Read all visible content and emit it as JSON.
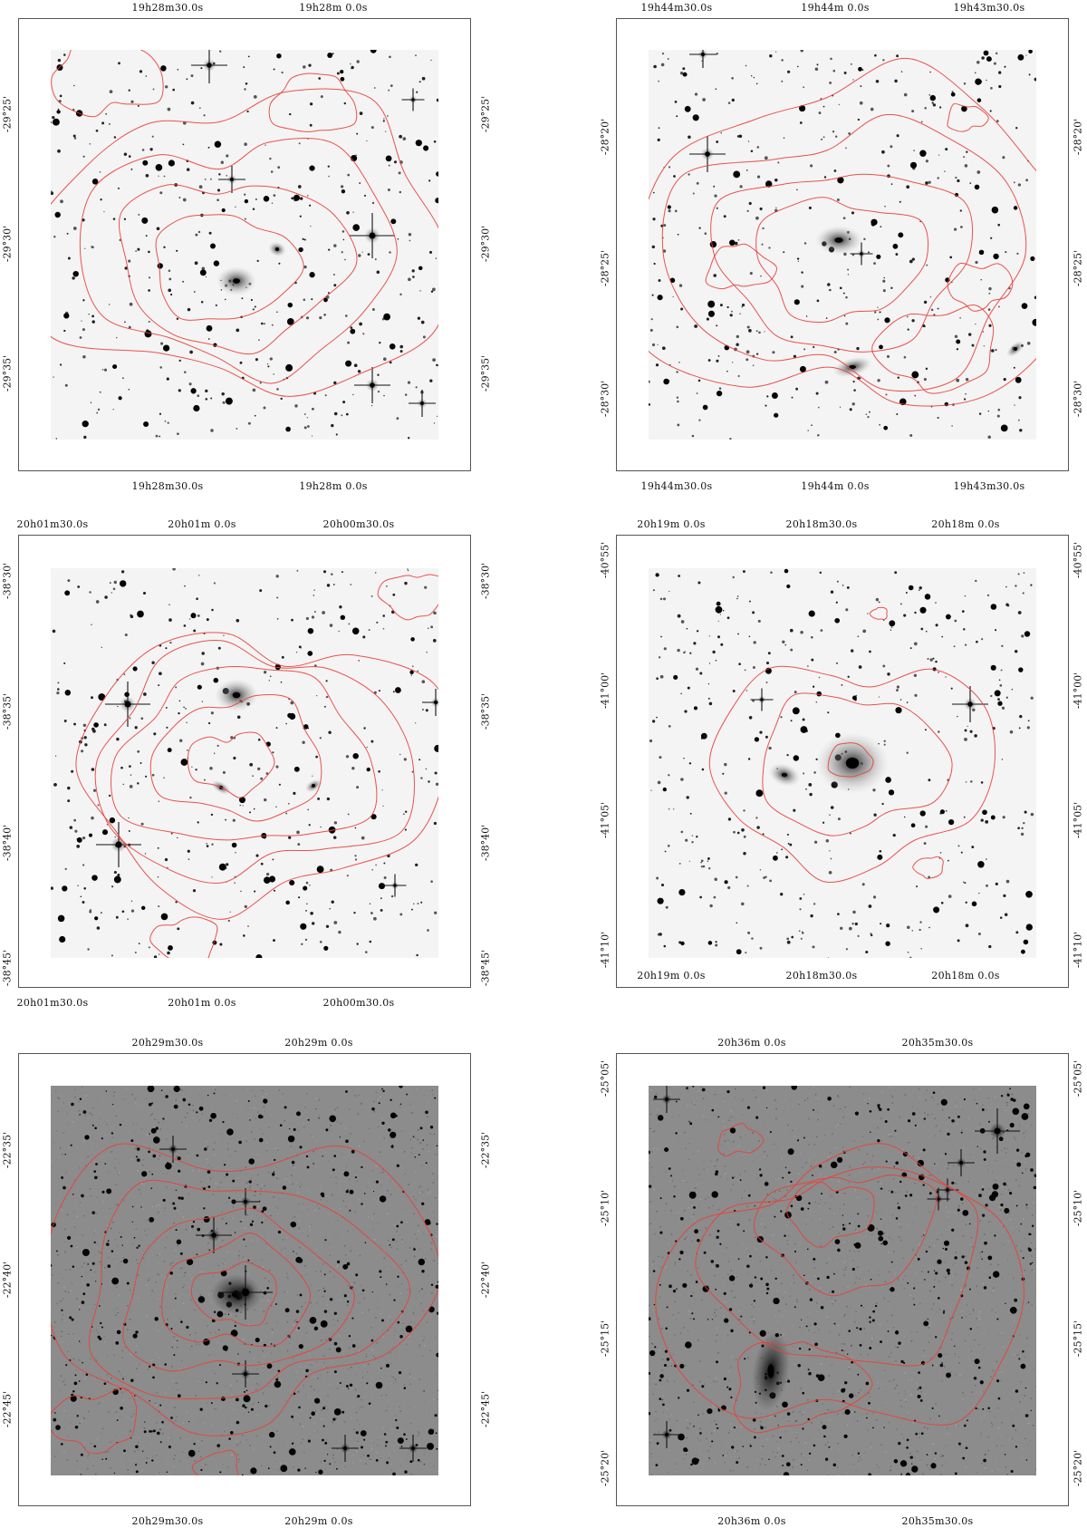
{
  "panels": [
    {
      "id": "p1",
      "theme": "light",
      "ra_top": [
        "19h28m30.0s",
        "19h28m 0.0s"
      ],
      "ra_bottom": [
        "19h28m30.0s",
        "19h28m 0.0s"
      ],
      "dec_labels": [
        "-29°25'",
        "-29°30'",
        "-29°35'"
      ]
    },
    {
      "id": "p2",
      "theme": "light",
      "ra_top": [
        "19h44m30.0s",
        "19h44m 0.0s",
        "19h43m30.0s"
      ],
      "ra_bottom": [
        "19h44m30.0s",
        "19h44m 0.0s",
        "19h43m30.0s"
      ],
      "dec_labels": [
        "-28°20'",
        "-28°25'",
        "-28°30'"
      ]
    },
    {
      "id": "p3",
      "theme": "light",
      "ra_top": [
        "20h01m30.0s",
        "20h01m 0.0s",
        "20h00m30.0s"
      ],
      "ra_bottom": [
        "20h01m30.0s",
        "20h01m 0.0s",
        "20h00m30.0s"
      ],
      "dec_labels": [
        "-38°30'",
        "-38°35'",
        "-38°40'",
        "-38°45'"
      ]
    },
    {
      "id": "p4",
      "theme": "light",
      "ra_top": [
        "20h19m 0.0s",
        "20h18m30.0s",
        "20h18m 0.0s"
      ],
      "ra_bottom": [
        "20h19m 0.0s",
        "20h18m30.0s",
        "20h18m 0.0s"
      ],
      "dec_labels": [
        "-40°55'",
        "-41°00'",
        "-41°05'",
        "-41°10'"
      ]
    },
    {
      "id": "p5",
      "theme": "dark",
      "ra_top": [
        "20h29m30.0s",
        "20h29m 0.0s"
      ],
      "ra_bottom": [
        "20h29m30.0s",
        "20h29m 0.0s"
      ],
      "dec_labels": [
        "-22°35'",
        "-22°40'",
        "-22°45'"
      ]
    },
    {
      "id": "p6",
      "theme": "dark",
      "ra_top": [
        "20h36m 0.0s",
        "20h35m30.0s"
      ],
      "ra_bottom": [
        "20h36m 0.0s",
        "20h35m30.0s"
      ],
      "dec_labels": [
        "-25°05'",
        "-25°10'",
        "-25°15'",
        "-25°20'"
      ]
    }
  ],
  "colors": {
    "contour": "#e8403a",
    "light_sky": "#f4f4f4",
    "dark_sky": "#8c8c8c",
    "frame": "#555555"
  }
}
